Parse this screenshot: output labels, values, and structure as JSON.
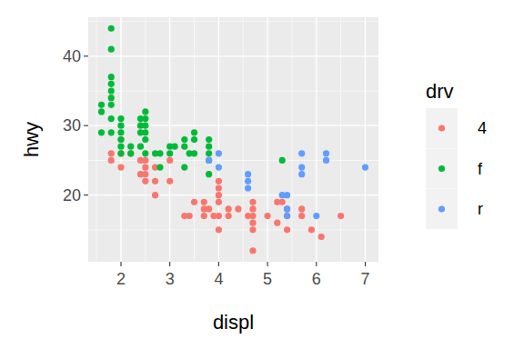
{
  "chart_data": {
    "type": "scatter",
    "x_label": "displ",
    "y_label": "hwy",
    "legend_title": "drv",
    "xlim": [
      1.33,
      7.27
    ],
    "ylim": [
      10.4,
      45.6
    ],
    "xticks": [
      2,
      3,
      4,
      5,
      6,
      7
    ],
    "yticks": [
      20,
      30,
      40
    ],
    "grid": true,
    "legend": "right",
    "marker": "circle",
    "series": [
      {
        "name": "4",
        "color": "#F8766D",
        "x": [
          1.8,
          1.8,
          2.0,
          2.0,
          2.0,
          2.2,
          2.4,
          2.4,
          2.5,
          2.5,
          2.5,
          2.5,
          2.7,
          2.7,
          2.7,
          3.0,
          3.0,
          3.3,
          3.4,
          3.5,
          3.7,
          3.7,
          3.7,
          3.8,
          3.9,
          4.0,
          4.0,
          4.0,
          4.0,
          4.0,
          4.0,
          4.2,
          4.2,
          4.4,
          4.6,
          4.7,
          4.7,
          4.7,
          4.7,
          4.7,
          4.7,
          5.0,
          5.2,
          5.2,
          5.3,
          5.4,
          5.4,
          5.4,
          5.7,
          5.7,
          5.9,
          6.1,
          6.5
        ],
        "values": [
          26,
          25,
          28,
          26,
          24,
          26,
          25,
          23,
          25,
          24,
          23,
          22,
          24,
          22,
          20,
          25,
          22,
          17,
          17,
          19,
          19,
          18,
          17,
          18,
          17,
          22,
          21,
          20,
          19,
          17,
          15,
          18,
          17,
          18,
          17,
          19,
          18,
          17,
          16,
          15,
          12,
          17,
          19,
          16,
          19,
          18,
          17,
          15,
          18,
          17,
          15,
          14,
          17
        ]
      },
      {
        "name": "f",
        "color": "#00BA38",
        "x": [
          1.6,
          1.6,
          1.6,
          1.8,
          1.8,
          1.8,
          1.8,
          1.8,
          1.8,
          1.8,
          1.8,
          1.8,
          2.0,
          2.0,
          2.0,
          2.0,
          2.0,
          2.0,
          2.2,
          2.2,
          2.4,
          2.4,
          2.4,
          2.4,
          2.5,
          2.5,
          2.5,
          2.5,
          2.5,
          2.5,
          2.7,
          2.8,
          2.8,
          3.0,
          3.0,
          3.1,
          3.3,
          3.3,
          3.3,
          3.4,
          3.5,
          3.5,
          3.5,
          3.8,
          3.8,
          3.8,
          3.8,
          3.8,
          5.3
        ],
        "values": [
          33,
          32,
          29,
          44,
          41,
          37,
          36,
          35,
          34,
          33,
          31,
          29,
          31,
          30,
          29,
          28,
          27,
          26,
          27,
          26,
          31,
          30,
          29,
          27,
          32,
          31,
          30,
          29,
          28,
          26,
          26,
          26,
          24,
          27,
          26,
          27,
          28,
          27,
          24,
          26,
          29,
          28,
          26,
          28,
          27,
          26,
          25,
          23,
          25
        ]
      },
      {
        "name": "r",
        "color": "#619CFF",
        "x": [
          3.8,
          4.0,
          4.0,
          4.6,
          4.6,
          4.6,
          5.3,
          5.4,
          5.4,
          5.4,
          5.7,
          5.7,
          5.7,
          6.0,
          6.2,
          6.2,
          7.0
        ],
        "values": [
          25,
          26,
          24,
          23,
          22,
          21,
          20,
          20,
          18,
          17,
          26,
          24,
          23,
          17,
          26,
          25,
          24
        ]
      }
    ]
  }
}
